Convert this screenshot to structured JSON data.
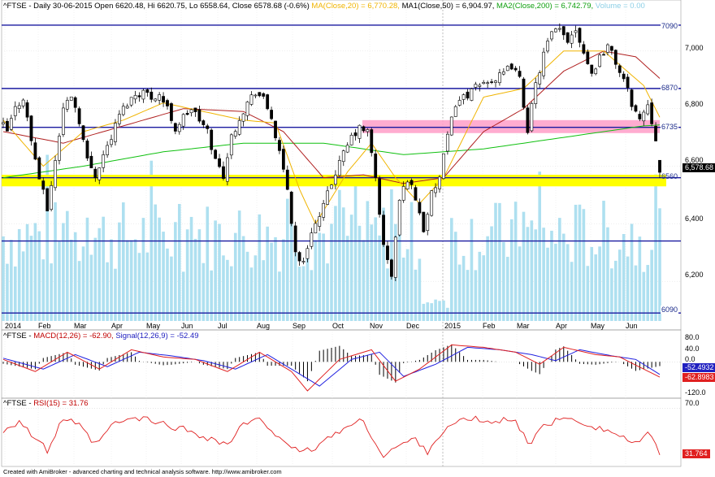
{
  "price_header": {
    "symbol_info": "^FTSE - Daily 30-06-2015 Open 6620.48, Hi 6620.75, Lo 6558.64, Close 6578.68 (-0.6%)",
    "ma20": "MA(Close,20) = 6,770.28,",
    "ma50": "MA1(Close,50) = 6,904.97,",
    "ma200": "MA2(Close,200) = 6,742.79,",
    "volume": "Volume = 0.00"
  },
  "macd_header": {
    "prefix": "^FTSE - ",
    "macd": "MACD(12,26) = -62.90,",
    "signal": "Signal(12,26,9) = -52.49"
  },
  "rsi_header": {
    "prefix": "^FTSE - ",
    "rsi": "RSI(15) = 31.76"
  },
  "footer": "Created with AmiBroker - advanced charting and technical analysis software. http://www.amibroker.com",
  "price_axis_ticks": [
    "7,000",
    "6,800",
    "6,600",
    "6,400",
    "6,200"
  ],
  "last_price_badge": "6,578.68",
  "level_labels": [
    "7090",
    "6870",
    "6735",
    "6560",
    "6090"
  ],
  "macd_axis_ticks": [
    "80.0",
    "40.0",
    "0.0",
    "-120.0"
  ],
  "macd_badges": [
    "-52.4932",
    "-62.8983"
  ],
  "rsi_axis_ticks": [
    "70.0"
  ],
  "rsi_badge": "31.764",
  "x_labels": [
    "2014",
    "Feb",
    "Mar",
    "Apr",
    "May",
    "Jun",
    "Jul",
    "Aug",
    "Sep",
    "Oct",
    "Nov",
    "Dec",
    "2015",
    "Feb",
    "Mar",
    "Apr",
    "May",
    "Jun"
  ],
  "colors": {
    "candle": "#000000",
    "ma20": "#f0b400",
    "ma50": "#b02020",
    "ma200": "#10c010",
    "volume": "#aee0f0",
    "levels": "#1a1aa0",
    "support_zone": "#ffff00",
    "resistance_zone": "#ff9ec8",
    "macd": "#2020e0",
    "signal": "#e02020",
    "rsi": "#e02020"
  },
  "chart_data": [
    {
      "type": "candlestick",
      "title": "^FTSE - Daily",
      "ylim": [
        6065,
        7135
      ],
      "x_months": [
        "2014",
        "Feb",
        "Mar",
        "Apr",
        "May",
        "Jun",
        "Jul",
        "Aug",
        "Sep",
        "Oct",
        "Nov",
        "Dec",
        "2015",
        "Feb",
        "Mar",
        "Apr",
        "May",
        "Jun"
      ],
      "last": {
        "date": "30-06-2015",
        "open": 6620.48,
        "high": 6620.75,
        "low": 6558.64,
        "close": 6578.68
      },
      "close_path": [
        [
          0,
          6740
        ],
        [
          1,
          6720
        ],
        [
          3,
          6800
        ],
        [
          5,
          6840
        ],
        [
          7,
          6690
        ],
        [
          9,
          6560
        ],
        [
          11,
          6450
        ],
        [
          13,
          6620
        ],
        [
          15,
          6800
        ],
        [
          17,
          6850
        ],
        [
          19,
          6760
        ],
        [
          21,
          6620
        ],
        [
          23,
          6570
        ],
        [
          25,
          6640
        ],
        [
          27,
          6700
        ],
        [
          29,
          6780
        ],
        [
          31,
          6820
        ],
        [
          33,
          6850
        ],
        [
          35,
          6860
        ],
        [
          37,
          6840
        ],
        [
          39,
          6850
        ],
        [
          41,
          6800
        ],
        [
          43,
          6730
        ],
        [
          45,
          6770
        ],
        [
          47,
          6800
        ],
        [
          49,
          6760
        ],
        [
          51,
          6720
        ],
        [
          53,
          6620
        ],
        [
          55,
          6570
        ],
        [
          57,
          6700
        ],
        [
          59,
          6770
        ],
        [
          61,
          6820
        ],
        [
          63,
          6860
        ],
        [
          65,
          6830
        ],
        [
          67,
          6770
        ],
        [
          69,
          6640
        ],
        [
          71,
          6520
        ],
        [
          73,
          6300
        ],
        [
          75,
          6260
        ],
        [
          77,
          6380
        ],
        [
          79,
          6420
        ],
        [
          81,
          6500
        ],
        [
          83,
          6580
        ],
        [
          85,
          6640
        ],
        [
          87,
          6700
        ],
        [
          89,
          6730
        ],
        [
          91,
          6720
        ],
        [
          93,
          6560
        ],
        [
          95,
          6320
        ],
        [
          97,
          6220
        ],
        [
          99,
          6480
        ],
        [
          101,
          6560
        ],
        [
          103,
          6490
        ],
        [
          105,
          6380
        ],
        [
          107,
          6500
        ],
        [
          109,
          6560
        ],
        [
          111,
          6700
        ],
        [
          113,
          6820
        ],
        [
          115,
          6840
        ],
        [
          117,
          6860
        ],
        [
          119,
          6880
        ],
        [
          121,
          6900
        ],
        [
          123,
          6900
        ],
        [
          125,
          6920
        ],
        [
          127,
          6950
        ],
        [
          129,
          6900
        ],
        [
          131,
          6730
        ],
        [
          133,
          6880
        ],
        [
          135,
          6990
        ],
        [
          137,
          7060
        ],
        [
          139,
          7070
        ],
        [
          141,
          7040
        ],
        [
          143,
          7080
        ],
        [
          145,
          7000
        ],
        [
          147,
          6920
        ],
        [
          149,
          6980
        ],
        [
          151,
          7020
        ],
        [
          153,
          6960
        ],
        [
          155,
          6900
        ],
        [
          157,
          6820
        ],
        [
          159,
          6760
        ],
        [
          161,
          6820
        ],
        [
          163,
          6700
        ],
        [
          164,
          6579
        ]
      ],
      "ma20": [
        [
          0,
          6760
        ],
        [
          10,
          6600
        ],
        [
          20,
          6720
        ],
        [
          30,
          6760
        ],
        [
          40,
          6820
        ],
        [
          50,
          6790
        ],
        [
          60,
          6760
        ],
        [
          68,
          6750
        ],
        [
          74,
          6520
        ],
        [
          78,
          6400
        ],
        [
          86,
          6580
        ],
        [
          92,
          6680
        ],
        [
          98,
          6560
        ],
        [
          104,
          6470
        ],
        [
          110,
          6560
        ],
        [
          120,
          6840
        ],
        [
          130,
          6870
        ],
        [
          140,
          7000
        ],
        [
          150,
          7000
        ],
        [
          160,
          6880
        ],
        [
          164,
          6770
        ]
      ],
      "ma50": [
        [
          0,
          6720
        ],
        [
          15,
          6680
        ],
        [
          30,
          6740
        ],
        [
          45,
          6800
        ],
        [
          60,
          6790
        ],
        [
          70,
          6720
        ],
        [
          80,
          6560
        ],
        [
          90,
          6570
        ],
        [
          100,
          6540
        ],
        [
          110,
          6560
        ],
        [
          120,
          6720
        ],
        [
          130,
          6800
        ],
        [
          140,
          6930
        ],
        [
          150,
          7000
        ],
        [
          158,
          6980
        ],
        [
          164,
          6905
        ]
      ],
      "ma200": [
        [
          0,
          6560
        ],
        [
          20,
          6600
        ],
        [
          40,
          6650
        ],
        [
          60,
          6680
        ],
        [
          80,
          6680
        ],
        [
          100,
          6640
        ],
        [
          120,
          6660
        ],
        [
          140,
          6700
        ],
        [
          160,
          6740
        ],
        [
          164,
          6743
        ]
      ],
      "levels": [
        7090,
        6870,
        6735,
        6560,
        6340,
        6090
      ],
      "support_zone": [
        6530,
        6570
      ],
      "resistance_zone": [
        6715,
        6760
      ],
      "volume": "shown as bars, value 0.00"
    },
    {
      "type": "line",
      "title": "MACD(12,26)",
      "ylim": [
        -140,
        95
      ],
      "series": [
        {
          "name": "MACD(12,26)",
          "last": -62.9,
          "values": [
            [
              0,
              10
            ],
            [
              8,
              -40
            ],
            [
              16,
              40
            ],
            [
              24,
              -30
            ],
            [
              32,
              50
            ],
            [
              40,
              20
            ],
            [
              48,
              10
            ],
            [
              56,
              -40
            ],
            [
              64,
              40
            ],
            [
              72,
              -40
            ],
            [
              76,
              -120
            ],
            [
              84,
              10
            ],
            [
              92,
              50
            ],
            [
              98,
              -80
            ],
            [
              104,
              -30
            ],
            [
              112,
              70
            ],
            [
              120,
              60
            ],
            [
              128,
              40
            ],
            [
              134,
              -10
            ],
            [
              140,
              60
            ],
            [
              148,
              30
            ],
            [
              154,
              20
            ],
            [
              160,
              -30
            ],
            [
              164,
              -63
            ]
          ]
        },
        {
          "name": "Signal(12,26,9)",
          "last": -52.49,
          "values": [
            [
              0,
              15
            ],
            [
              10,
              -30
            ],
            [
              18,
              30
            ],
            [
              26,
              -20
            ],
            [
              34,
              40
            ],
            [
              42,
              25
            ],
            [
              50,
              5
            ],
            [
              58,
              -30
            ],
            [
              66,
              30
            ],
            [
              74,
              -50
            ],
            [
              79,
              -100
            ],
            [
              87,
              10
            ],
            [
              94,
              40
            ],
            [
              100,
              -60
            ],
            [
              108,
              -10
            ],
            [
              116,
              60
            ],
            [
              124,
              50
            ],
            [
              132,
              30
            ],
            [
              138,
              5
            ],
            [
              144,
              50
            ],
            [
              152,
              25
            ],
            [
              158,
              10
            ],
            [
              164,
              -52
            ]
          ]
        }
      ]
    },
    {
      "type": "line",
      "title": "RSI(15)",
      "ylim": [
        25,
        75
      ],
      "series": [
        {
          "name": "RSI(15)",
          "last": 31.76,
          "values": [
            [
              0,
              52
            ],
            [
              4,
              60
            ],
            [
              8,
              45
            ],
            [
              11,
              35
            ],
            [
              15,
              62
            ],
            [
              19,
              55
            ],
            [
              23,
              40
            ],
            [
              28,
              58
            ],
            [
              34,
              62
            ],
            [
              40,
              57
            ],
            [
              46,
              52
            ],
            [
              52,
              45
            ],
            [
              56,
              40
            ],
            [
              60,
              57
            ],
            [
              64,
              60
            ],
            [
              70,
              45
            ],
            [
              74,
              32
            ],
            [
              78,
              38
            ],
            [
              84,
              52
            ],
            [
              90,
              60
            ],
            [
              95,
              30
            ],
            [
              98,
              38
            ],
            [
              103,
              45
            ],
            [
              106,
              35
            ],
            [
              110,
              52
            ],
            [
              116,
              62
            ],
            [
              122,
              58
            ],
            [
              128,
              62
            ],
            [
              131,
              40
            ],
            [
              136,
              58
            ],
            [
              142,
              62
            ],
            [
              148,
              55
            ],
            [
              154,
              48
            ],
            [
              158,
              40
            ],
            [
              161,
              50
            ],
            [
              164,
              32
            ]
          ]
        }
      ]
    }
  ]
}
